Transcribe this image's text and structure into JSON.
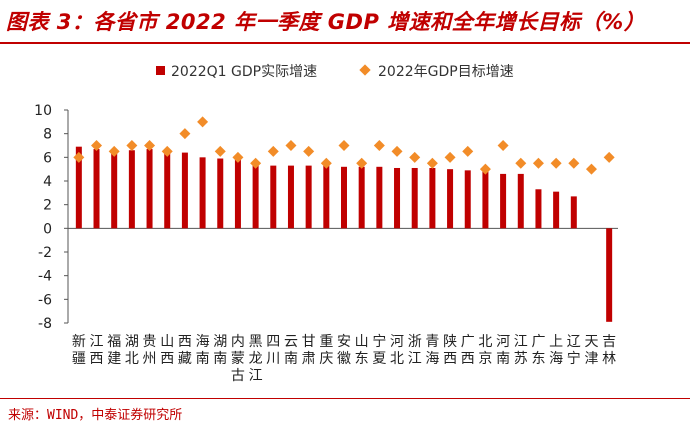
{
  "title": "图表 3：各省市 2022 年一季度 GDP 增速和全年增长目标（%）",
  "source": "来源：WIND，中泰证券研究所",
  "colors": {
    "accent": "#c00000",
    "bar": "#c00000",
    "marker": "#f28c28"
  },
  "chart_data": {
    "type": "bar",
    "title": "各省市 2022 年一季度 GDP 增速和全年增长目标（%）",
    "xlabel": "",
    "ylabel": "",
    "ylim": [
      -8,
      10
    ],
    "yticks": [
      10,
      8,
      6,
      4,
      2,
      0,
      -2,
      -4,
      -6,
      -8
    ],
    "legend_position": "top",
    "grid": false,
    "categories": [
      "新疆",
      "江西",
      "福建",
      "湖北",
      "贵州",
      "山西",
      "西藏",
      "海南",
      "湖南",
      "内蒙古",
      "黑龙江",
      "四川",
      "云南",
      "甘肃",
      "重庆",
      "安徽",
      "山东",
      "宁夏",
      "河北",
      "浙江",
      "青海",
      "陕西",
      "广西",
      "北京",
      "河南",
      "江苏",
      "广东",
      "上海",
      "辽宁",
      "天津",
      "吉林"
    ],
    "series": [
      {
        "name": "2022Q1 GDP实际增速",
        "kind": "bar",
        "values": [
          6.9,
          6.7,
          6.3,
          6.6,
          6.7,
          6.5,
          6.4,
          6.0,
          5.9,
          5.8,
          5.4,
          5.3,
          5.3,
          5.3,
          5.3,
          5.2,
          5.2,
          5.2,
          5.1,
          5.1,
          5.1,
          5.0,
          4.9,
          4.8,
          4.6,
          4.6,
          3.3,
          3.1,
          2.7,
          null,
          -7.9
        ]
      },
      {
        "name": "2022年GDP目标增速",
        "kind": "marker",
        "values": [
          6.0,
          7.0,
          6.5,
          7.0,
          7.0,
          6.5,
          8.0,
          9.0,
          6.5,
          6.0,
          5.5,
          6.5,
          7.0,
          6.5,
          5.5,
          7.0,
          5.5,
          7.0,
          6.5,
          6.0,
          5.5,
          6.0,
          6.5,
          5.0,
          7.0,
          5.5,
          5.5,
          5.5,
          5.5,
          5.0,
          6.0
        ]
      }
    ]
  }
}
